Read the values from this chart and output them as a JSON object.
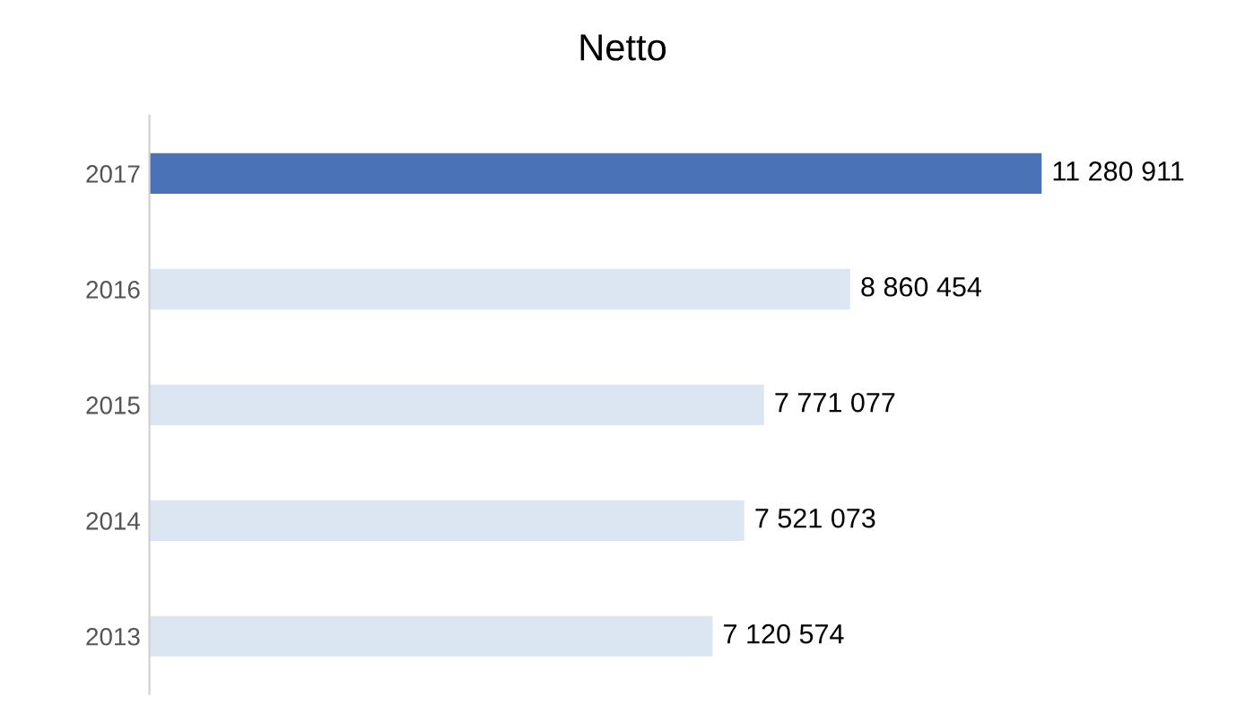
{
  "chart_data": {
    "type": "bar",
    "orientation": "horizontal",
    "title": "Netto",
    "categories": [
      "2017",
      "2016",
      "2015",
      "2014",
      "2013"
    ],
    "values": [
      11280911,
      8860454,
      7771077,
      7521073,
      7120574
    ],
    "colors": [
      "#4a72b6",
      "#dce6f2",
      "#dce6f2",
      "#dce6f2",
      "#dce6f2"
    ],
    "value_labels": [
      "11 280 911",
      "8 860 454",
      "7 771 077",
      "7 521 073",
      "7 120 574"
    ],
    "tick_labels": "y"
  }
}
